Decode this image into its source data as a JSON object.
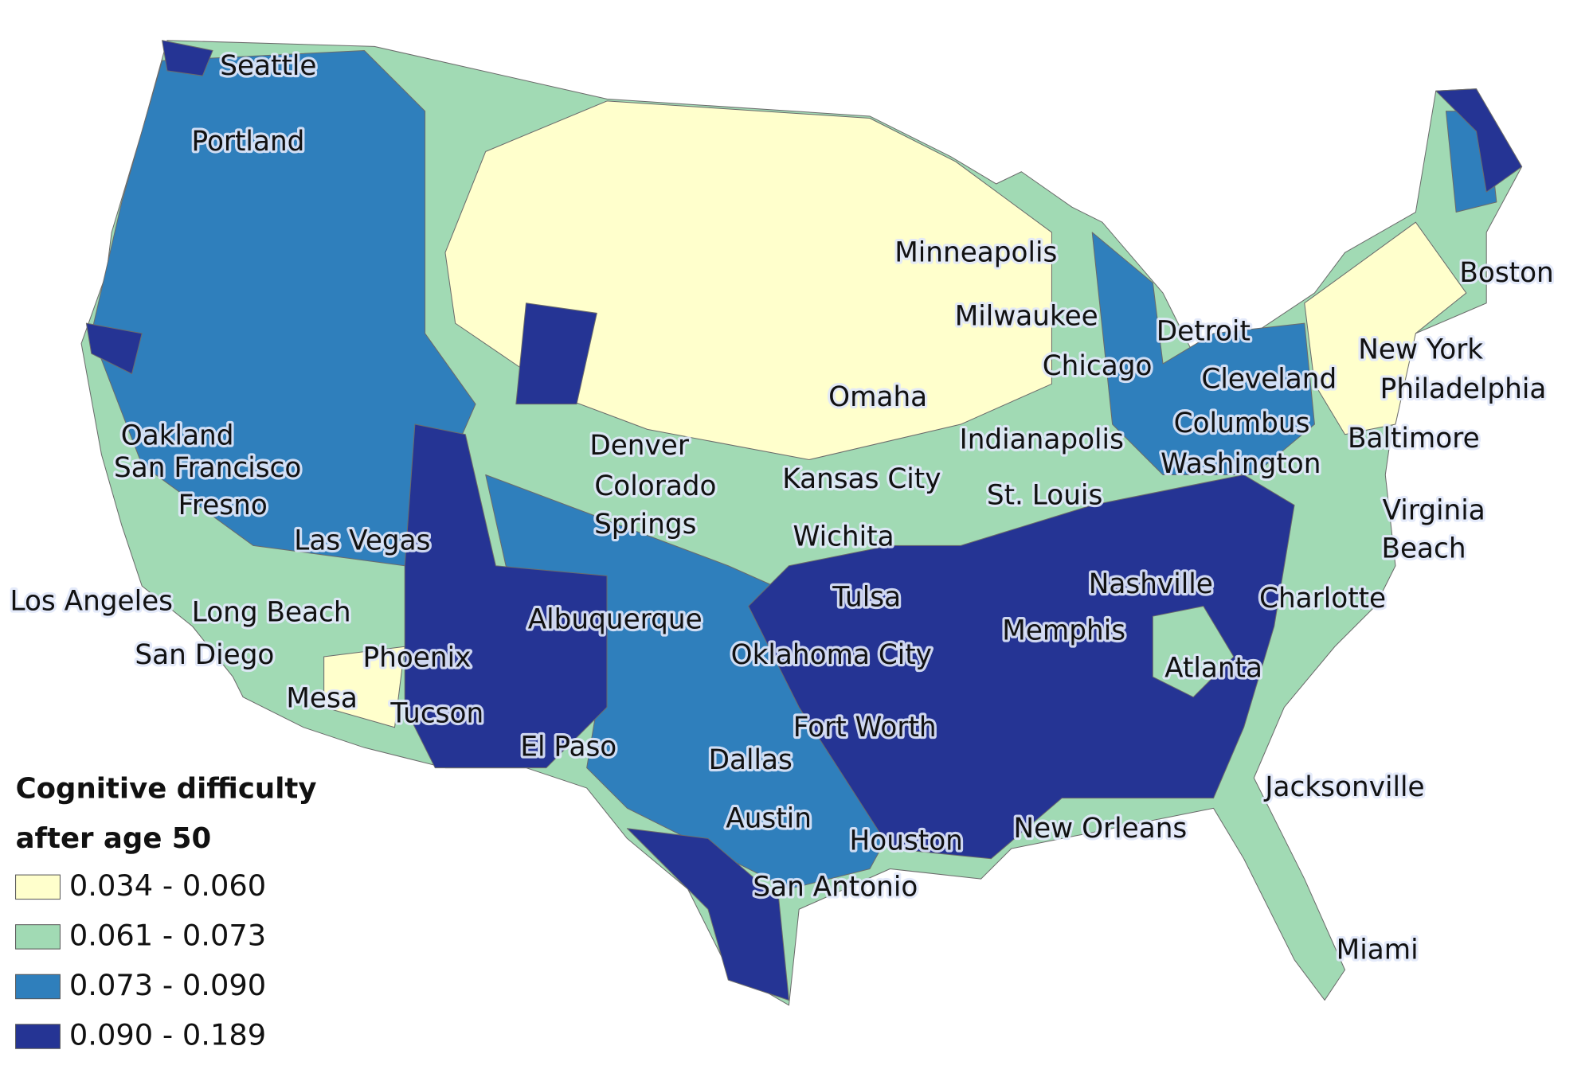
{
  "legend": {
    "title": [
      "Cognitive difficulty",
      "after age 50"
    ],
    "items": [
      {
        "label": "0.034 - 0.060",
        "color": "#ffffcc"
      },
      {
        "label": "0.061 - 0.073",
        "color": "#a1dab4"
      },
      {
        "label": "0.073 - 0.090",
        "color": "#2f7fbc"
      },
      {
        "label": "0.090 - 0.189",
        "color": "#253494"
      }
    ]
  },
  "cities": [
    "Seattle",
    "Portland",
    "Minneapolis",
    "Boston",
    "Milwaukee",
    "Detroit",
    "New York",
    "Chicago",
    "Cleveland",
    "Philadelphia",
    "Omaha",
    "Oakland",
    "Indianapolis",
    "Columbus",
    "Baltimore",
    "Denver",
    "San Francisco",
    "Washington",
    "Kansas City",
    [
      "Colorado",
      "Springs"
    ],
    "Fresno",
    "St. Louis",
    [
      "Virginia",
      "Beach"
    ],
    "Las Vegas",
    "Wichita",
    "Nashville",
    "Los Angeles",
    "Charlotte",
    "Tulsa",
    "Long Beach",
    "Albuquerque",
    "Memphis",
    "San Diego",
    "Phoenix",
    "Oklahoma City",
    "Atlanta",
    "Mesa",
    "Tucson",
    "Fort Worth",
    "El Paso",
    "Dallas",
    "Jacksonville",
    "Austin",
    "New Orleans",
    "Houston",
    "San Antonio",
    "Miami"
  ]
}
